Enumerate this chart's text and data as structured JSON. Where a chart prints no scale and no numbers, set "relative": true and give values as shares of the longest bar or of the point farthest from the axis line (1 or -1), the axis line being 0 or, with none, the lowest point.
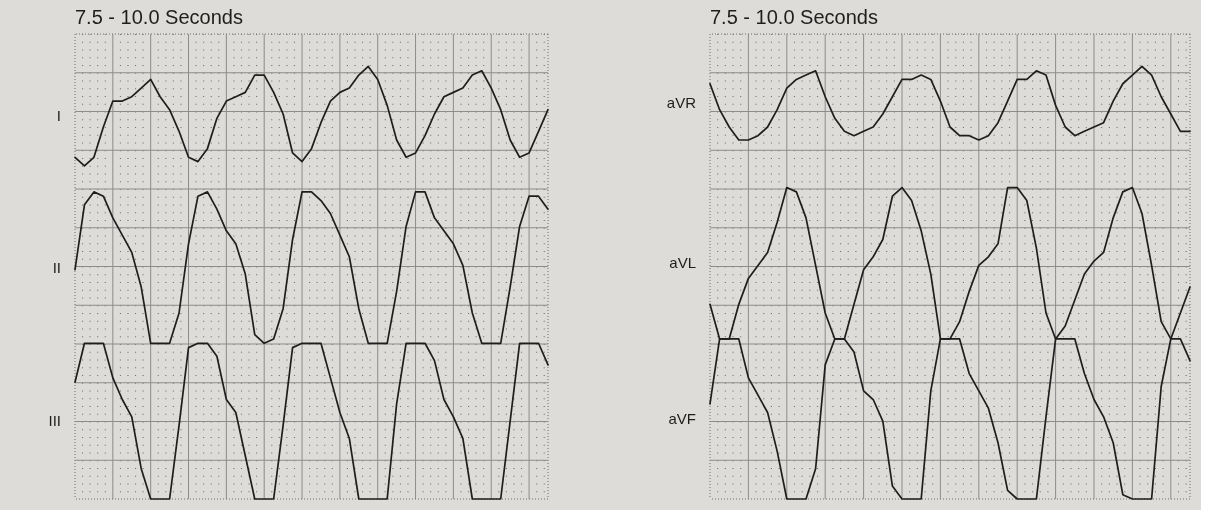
{
  "chart_data": [
    {
      "type": "line",
      "title": "7.5 - 10.0 Seconds",
      "relative": true,
      "grid": true,
      "tick_labels": false,
      "categories": [
        null,
        null,
        null,
        null,
        null,
        null,
        null,
        null,
        null,
        null,
        null,
        null,
        null,
        null,
        null,
        null,
        null,
        null,
        null,
        null,
        null,
        null,
        null,
        null,
        null,
        null,
        null,
        null,
        null,
        null,
        null,
        null,
        null,
        null,
        null,
        null,
        null,
        null,
        null,
        null,
        null,
        null,
        null,
        null,
        null,
        null,
        null,
        null,
        null,
        null,
        null
      ],
      "series": [
        {
          "name": "I",
          "color": "#1e1e1e",
          "values": [
            0.79,
            0.77,
            0.79,
            0.86,
            0.92,
            0.92,
            0.93,
            0.95,
            0.97,
            0.93,
            0.9,
            0.85,
            0.79,
            0.78,
            0.81,
            0.88,
            0.92,
            0.93,
            0.94,
            0.98,
            0.98,
            0.94,
            0.89,
            0.8,
            0.78,
            0.81,
            0.87,
            0.92,
            0.94,
            0.95,
            0.98,
            1.0,
            0.97,
            0.91,
            0.83,
            0.79,
            0.8,
            0.84,
            0.89,
            0.93,
            0.94,
            0.95,
            0.98,
            0.99,
            0.95,
            0.9,
            0.83,
            0.79,
            0.8,
            0.85,
            0.9
          ]
        },
        {
          "name": "II",
          "color": "#1e1e1e",
          "values": [
            0.53,
            0.68,
            0.71,
            0.7,
            0.65,
            0.61,
            0.57,
            0.49,
            0.36,
            0.36,
            0.36,
            0.43,
            0.59,
            0.7,
            0.71,
            0.67,
            0.62,
            0.59,
            0.52,
            0.38,
            0.36,
            0.37,
            0.44,
            0.6,
            0.71,
            0.71,
            0.69,
            0.66,
            0.61,
            0.56,
            0.44,
            0.36,
            0.36,
            0.36,
            0.48,
            0.63,
            0.71,
            0.71,
            0.65,
            0.62,
            0.59,
            0.54,
            0.43,
            0.36,
            0.36,
            0.36,
            0.49,
            0.63,
            0.7,
            0.7,
            0.67
          ]
        },
        {
          "name": "III",
          "color": "#1e1e1e",
          "values": [
            0.27,
            0.36,
            0.36,
            0.36,
            0.28,
            0.23,
            0.19,
            0.07,
            0,
            0,
            0,
            0.17,
            0.35,
            0.36,
            0.36,
            0.33,
            0.23,
            0.2,
            0.1,
            0,
            0,
            0,
            0.17,
            0.35,
            0.36,
            0.36,
            0.36,
            0.28,
            0.2,
            0.14,
            0,
            0,
            0,
            0,
            0.22,
            0.36,
            0.36,
            0.36,
            0.32,
            0.23,
            0.19,
            0.14,
            0,
            0,
            0,
            0,
            0.18,
            0.36,
            0.36,
            0.36,
            0.31
          ]
        }
      ]
    },
    {
      "type": "line",
      "title": "7.5 - 10.0 Seconds",
      "relative": true,
      "grid": true,
      "tick_labels": false,
      "categories": [
        null,
        null,
        null,
        null,
        null,
        null,
        null,
        null,
        null,
        null,
        null,
        null,
        null,
        null,
        null,
        null,
        null,
        null,
        null,
        null,
        null,
        null,
        null,
        null,
        null,
        null,
        null,
        null,
        null,
        null,
        null,
        null,
        null,
        null,
        null,
        null,
        null,
        null,
        null,
        null,
        null,
        null,
        null,
        null,
        null,
        null,
        null,
        null,
        null,
        null,
        null
      ],
      "series": [
        {
          "name": "aVR",
          "color": "#1e1e1e",
          "values": [
            0.96,
            0.9,
            0.86,
            0.83,
            0.83,
            0.84,
            0.86,
            0.9,
            0.95,
            0.97,
            0.98,
            0.99,
            0.93,
            0.88,
            0.85,
            0.84,
            0.85,
            0.86,
            0.89,
            0.93,
            0.97,
            0.97,
            0.98,
            0.97,
            0.92,
            0.86,
            0.84,
            0.84,
            0.83,
            0.84,
            0.87,
            0.92,
            0.97,
            0.97,
            0.99,
            0.98,
            0.91,
            0.86,
            0.84,
            0.85,
            0.86,
            0.87,
            0.92,
            0.96,
            0.98,
            1.0,
            0.98,
            0.93,
            0.89,
            0.85,
            0.85
          ]
        },
        {
          "name": "aVL",
          "color": "#1e1e1e",
          "values": [
            0.45,
            0.37,
            0.37,
            0.45,
            0.51,
            0.54,
            0.57,
            0.64,
            0.72,
            0.71,
            0.65,
            0.54,
            0.43,
            0.37,
            0.37,
            0.45,
            0.53,
            0.56,
            0.6,
            0.7,
            0.72,
            0.69,
            0.62,
            0.52,
            0.37,
            0.37,
            0.41,
            0.48,
            0.54,
            0.56,
            0.59,
            0.72,
            0.72,
            0.69,
            0.58,
            0.43,
            0.37,
            0.4,
            0.46,
            0.52,
            0.55,
            0.57,
            0.65,
            0.71,
            0.72,
            0.66,
            0.54,
            0.41,
            0.37,
            0.43,
            0.49
          ]
        },
        {
          "name": "aVF",
          "color": "#1e1e1e",
          "values": [
            0.22,
            0.37,
            0.37,
            0.37,
            0.28,
            0.24,
            0.2,
            0.11,
            0,
            0,
            0,
            0.07,
            0.31,
            0.37,
            0.37,
            0.34,
            0.25,
            0.23,
            0.18,
            0.03,
            0,
            0,
            0,
            0.25,
            0.37,
            0.37,
            0.37,
            0.29,
            0.25,
            0.21,
            0.13,
            0.02,
            0,
            0,
            0,
            0.19,
            0.37,
            0.37,
            0.37,
            0.29,
            0.23,
            0.19,
            0.13,
            0.01,
            0,
            0,
            0,
            0.26,
            0.37,
            0.37,
            0.32
          ]
        }
      ]
    }
  ]
}
